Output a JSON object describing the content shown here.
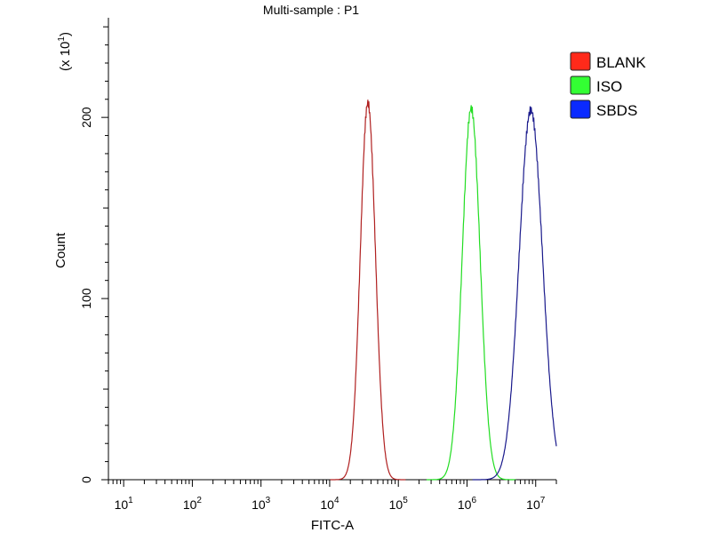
{
  "chart_data": {
    "type": "line",
    "title": "Multi-sample : P1",
    "xlabel": "FITC-A",
    "ylabel": "Count",
    "y_multiplier": {
      "prefix": "(x 10",
      "exponent": "1",
      "suffix": ")"
    },
    "x_scale": "log",
    "xlim": [
      6,
      20000000
    ],
    "ylim": [
      0,
      25.5
    ],
    "x_ticks": [
      {
        "value": 10,
        "base": "10",
        "exp": "1"
      },
      {
        "value": 100,
        "base": "10",
        "exp": "2"
      },
      {
        "value": 1000,
        "base": "10",
        "exp": "3"
      },
      {
        "value": 10000,
        "base": "10",
        "exp": "4"
      },
      {
        "value": 100000,
        "base": "10",
        "exp": "5"
      },
      {
        "value": 1000000,
        "base": "10",
        "exp": "6"
      },
      {
        "value": 10000000,
        "base": "10",
        "exp": "7"
      }
    ],
    "y_ticks": [
      {
        "value": 0,
        "label": "0"
      },
      {
        "value": 10,
        "label": "100"
      },
      {
        "value": 20,
        "label": "200"
      }
    ],
    "grid": false,
    "legend_position": "right",
    "series": [
      {
        "name": "BLANK",
        "color": "#b02020",
        "swatch": "#ff2a1a",
        "peak_x": 36000,
        "peak_y": 20.8,
        "sigma_decades": 0.11
      },
      {
        "name": "ISO",
        "color": "#22dd22",
        "swatch": "#33ff33",
        "peak_x": 1150000,
        "peak_y": 20.5,
        "sigma_decades": 0.13
      },
      {
        "name": "SBDS",
        "color": "#1a1a8c",
        "swatch": "#0a2aff",
        "peak_x": 8500000,
        "peak_y": 20.4,
        "sigma_decades": 0.17
      }
    ]
  }
}
